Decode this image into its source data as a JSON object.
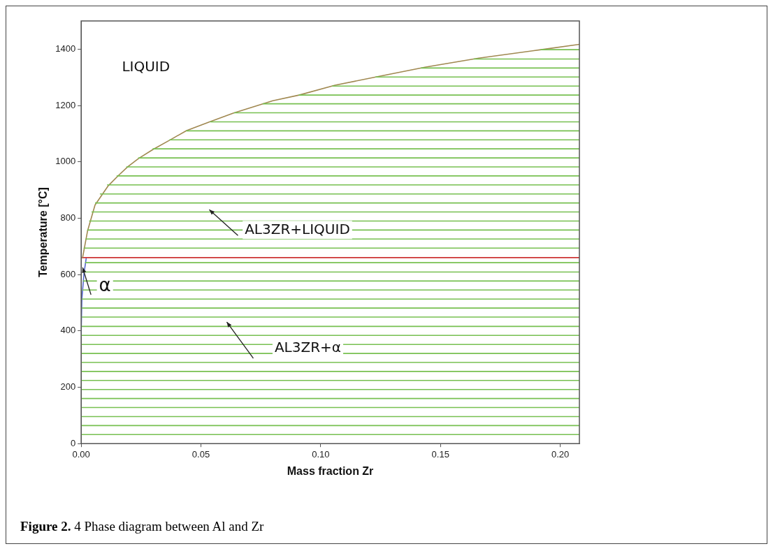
{
  "chart_data": {
    "type": "line",
    "xlabel": "Mass fraction Zr",
    "ylabel": "Temperature [°C]",
    "xlim": [
      0,
      0.208
    ],
    "ylim": [
      0,
      1500
    ],
    "xticks": [
      {
        "value": 0,
        "label": "0.00"
      },
      {
        "value": 0.05,
        "label": "0.05"
      },
      {
        "value": 0.1,
        "label": "0.10"
      },
      {
        "value": 0.15,
        "label": "0.15"
      },
      {
        "value": 0.2,
        "label": "0.20"
      }
    ],
    "yticks": [
      0,
      200,
      400,
      600,
      800,
      1000,
      1200,
      1400
    ],
    "grid": false,
    "legend": false,
    "line_style": "solid",
    "series": [
      {
        "color": "#77c050",
        "x": [
          0,
          0.208
        ],
        "values": [
          32,
          32
        ]
      },
      {
        "color": "#77c050",
        "x": [
          0,
          0.208
        ],
        "values": [
          64,
          64
        ]
      },
      {
        "color": "#77c050",
        "x": [
          0,
          0.208
        ],
        "values": [
          96,
          96
        ]
      },
      {
        "color": "#77c050",
        "x": [
          0,
          0.208
        ],
        "values": [
          128,
          128
        ]
      },
      {
        "color": "#77c050",
        "x": [
          0,
          0.208
        ],
        "values": [
          160,
          160
        ]
      },
      {
        "color": "#77c050",
        "x": [
          0,
          0.208
        ],
        "values": [
          192,
          192
        ]
      },
      {
        "color": "#77c050",
        "x": [
          0,
          0.208
        ],
        "values": [
          224,
          224
        ]
      },
      {
        "color": "#77c050",
        "x": [
          0,
          0.208
        ],
        "values": [
          256,
          256
        ]
      },
      {
        "color": "#77c050",
        "x": [
          0,
          0.208
        ],
        "values": [
          288,
          288
        ]
      },
      {
        "color": "#77c050",
        "x": [
          0,
          0.208
        ],
        "values": [
          320,
          320
        ]
      },
      {
        "color": "#77c050",
        "x": [
          0,
          0.208
        ],
        "values": [
          352,
          352
        ]
      },
      {
        "color": "#77c050",
        "x": [
          0,
          0.208
        ],
        "values": [
          384,
          384
        ]
      },
      {
        "color": "#77c050",
        "x": [
          0.0001,
          0.208
        ],
        "values": [
          416,
          416
        ]
      },
      {
        "color": "#77c050",
        "x": [
          0.0002,
          0.208
        ],
        "values": [
          449,
          449
        ]
      },
      {
        "color": "#77c050",
        "x": [
          0.0003,
          0.208
        ],
        "values": [
          481,
          481
        ]
      },
      {
        "color": "#77c050",
        "x": [
          0.0004,
          0.208
        ],
        "values": [
          513,
          513
        ]
      },
      {
        "color": "#77c050",
        "x": [
          0.0006,
          0.208
        ],
        "values": [
          545,
          545
        ]
      },
      {
        "color": "#77c050",
        "x": [
          0.0009,
          0.208
        ],
        "values": [
          577,
          577
        ]
      },
      {
        "color": "#77c050",
        "x": [
          0.0013,
          0.208
        ],
        "values": [
          609,
          609
        ]
      },
      {
        "color": "#77c050",
        "x": [
          0.0018,
          0.208
        ],
        "values": [
          642,
          642
        ]
      },
      {
        "color": "#77c050",
        "x": [
          0.0012,
          0.208
        ],
        "values": [
          694,
          694
        ]
      },
      {
        "color": "#77c050",
        "x": [
          0.002,
          0.208
        ],
        "values": [
          726,
          726
        ]
      },
      {
        "color": "#77c050",
        "x": [
          0.0027,
          0.208
        ],
        "values": [
          758,
          758
        ]
      },
      {
        "color": "#77c050",
        "x": [
          0.0035,
          0.208
        ],
        "values": [
          790,
          790
        ]
      },
      {
        "color": "#77c050",
        "x": [
          0.0045,
          0.208
        ],
        "values": [
          822,
          822
        ]
      },
      {
        "color": "#77c050",
        "x": [
          0.006,
          0.208
        ],
        "values": [
          854,
          854
        ]
      },
      {
        "color": "#77c050",
        "x": [
          0.008,
          0.208
        ],
        "values": [
          886,
          886
        ]
      },
      {
        "color": "#77c050",
        "x": [
          0.011,
          0.208
        ],
        "values": [
          918,
          918
        ]
      },
      {
        "color": "#77c050",
        "x": [
          0.015,
          0.208
        ],
        "values": [
          950,
          950
        ]
      },
      {
        "color": "#77c050",
        "x": [
          0.019,
          0.208
        ],
        "values": [
          982,
          982
        ]
      },
      {
        "color": "#77c050",
        "x": [
          0.024,
          0.208
        ],
        "values": [
          1014,
          1014
        ]
      },
      {
        "color": "#77c050",
        "x": [
          0.03,
          0.208
        ],
        "values": [
          1046,
          1046
        ]
      },
      {
        "color": "#77c050",
        "x": [
          0.037,
          0.208
        ],
        "values": [
          1078,
          1078
        ]
      },
      {
        "color": "#77c050",
        "x": [
          0.044,
          0.208
        ],
        "values": [
          1110,
          1110
        ]
      },
      {
        "color": "#77c050",
        "x": [
          0.054,
          0.208
        ],
        "values": [
          1142,
          1142
        ]
      },
      {
        "color": "#77c050",
        "x": [
          0.064,
          0.208
        ],
        "values": [
          1174,
          1174
        ]
      },
      {
        "color": "#77c050",
        "x": [
          0.076,
          0.208
        ],
        "values": [
          1206,
          1206
        ]
      },
      {
        "color": "#77c050",
        "x": [
          0.091,
          0.208
        ],
        "values": [
          1237,
          1237
        ]
      },
      {
        "color": "#77c050",
        "x": [
          0.105,
          0.208
        ],
        "values": [
          1269,
          1269
        ]
      },
      {
        "color": "#77c050",
        "x": [
          0.123,
          0.208
        ],
        "values": [
          1301,
          1301
        ]
      },
      {
        "color": "#77c050",
        "x": [
          0.142,
          0.208
        ],
        "values": [
          1333,
          1333
        ]
      },
      {
        "color": "#77c050",
        "x": [
          0.164,
          0.208
        ],
        "values": [
          1365,
          1365
        ]
      },
      {
        "color": "#77c050",
        "x": [
          0.192,
          0.208
        ],
        "values": [
          1398,
          1398
        ]
      },
      {
        "color": "#a08850",
        "x": [
          0.0006,
          0.0027,
          0.0058,
          0.0112,
          0.0155,
          0.0195,
          0.024,
          0.03,
          0.037,
          0.044,
          0.054,
          0.0635,
          0.08,
          0.091,
          0.106,
          0.123,
          0.1435,
          0.166,
          0.192,
          0.208
        ],
        "values": [
          660,
          756,
          847,
          914,
          951,
          983,
          1012,
          1044,
          1077,
          1111,
          1143,
          1173,
          1217,
          1237,
          1272,
          1301,
          1336,
          1368,
          1398,
          1417
        ]
      },
      {
        "color": "#cc3333",
        "x": [
          0,
          0.208
        ],
        "values": [
          660,
          660
        ]
      },
      {
        "color": "#5566cc",
        "x": [
          0,
          0,
          0.0003,
          0.0012,
          0.0021
        ],
        "values": [
          380,
          390,
          514,
          605,
          657
        ]
      }
    ],
    "annotations": [
      "LIQUID",
      {
        "text": "AL3ZR+LIQUID",
        "x": 0.0535,
        "y": 830
      },
      {
        "text": "α",
        "x": 0.0006,
        "y": 625
      },
      "AL3ZR+α",
      "Figure 2. 4 Phase diagram between Al and Zr"
    ]
  }
}
